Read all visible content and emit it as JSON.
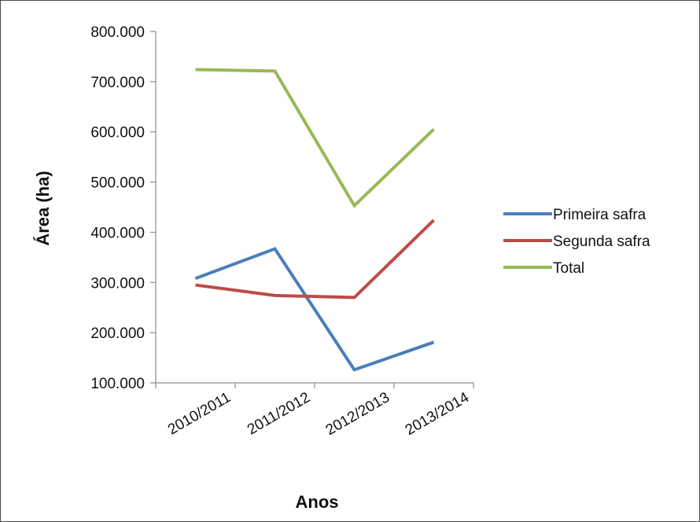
{
  "chart_data": {
    "type": "line",
    "title": "",
    "xlabel": "Anos",
    "ylabel": "Área (ha)",
    "categories": [
      "2010/2011",
      "2011/2012",
      "2012/2013",
      "2013/2014"
    ],
    "ylim": [
      100000,
      800000
    ],
    "yticks": [
      100000,
      200000,
      300000,
      400000,
      500000,
      600000,
      700000,
      800000
    ],
    "ytick_labels": [
      "100.000",
      "200.000",
      "300.000",
      "400.000",
      "500.000",
      "600.000",
      "700.000",
      "800.000"
    ],
    "grid": false,
    "legend_position": "right",
    "series": [
      {
        "name": "Primeira safra",
        "color": "#4a7ebb",
        "values": [
          308000,
          367000,
          126000,
          181000
        ]
      },
      {
        "name": "Segunda safra",
        "color": "#be4b48",
        "values": [
          295000,
          274000,
          270000,
          424000
        ]
      },
      {
        "name": "Total",
        "color": "#98b954",
        "values": [
          724000,
          721000,
          453000,
          605000
        ]
      }
    ]
  }
}
